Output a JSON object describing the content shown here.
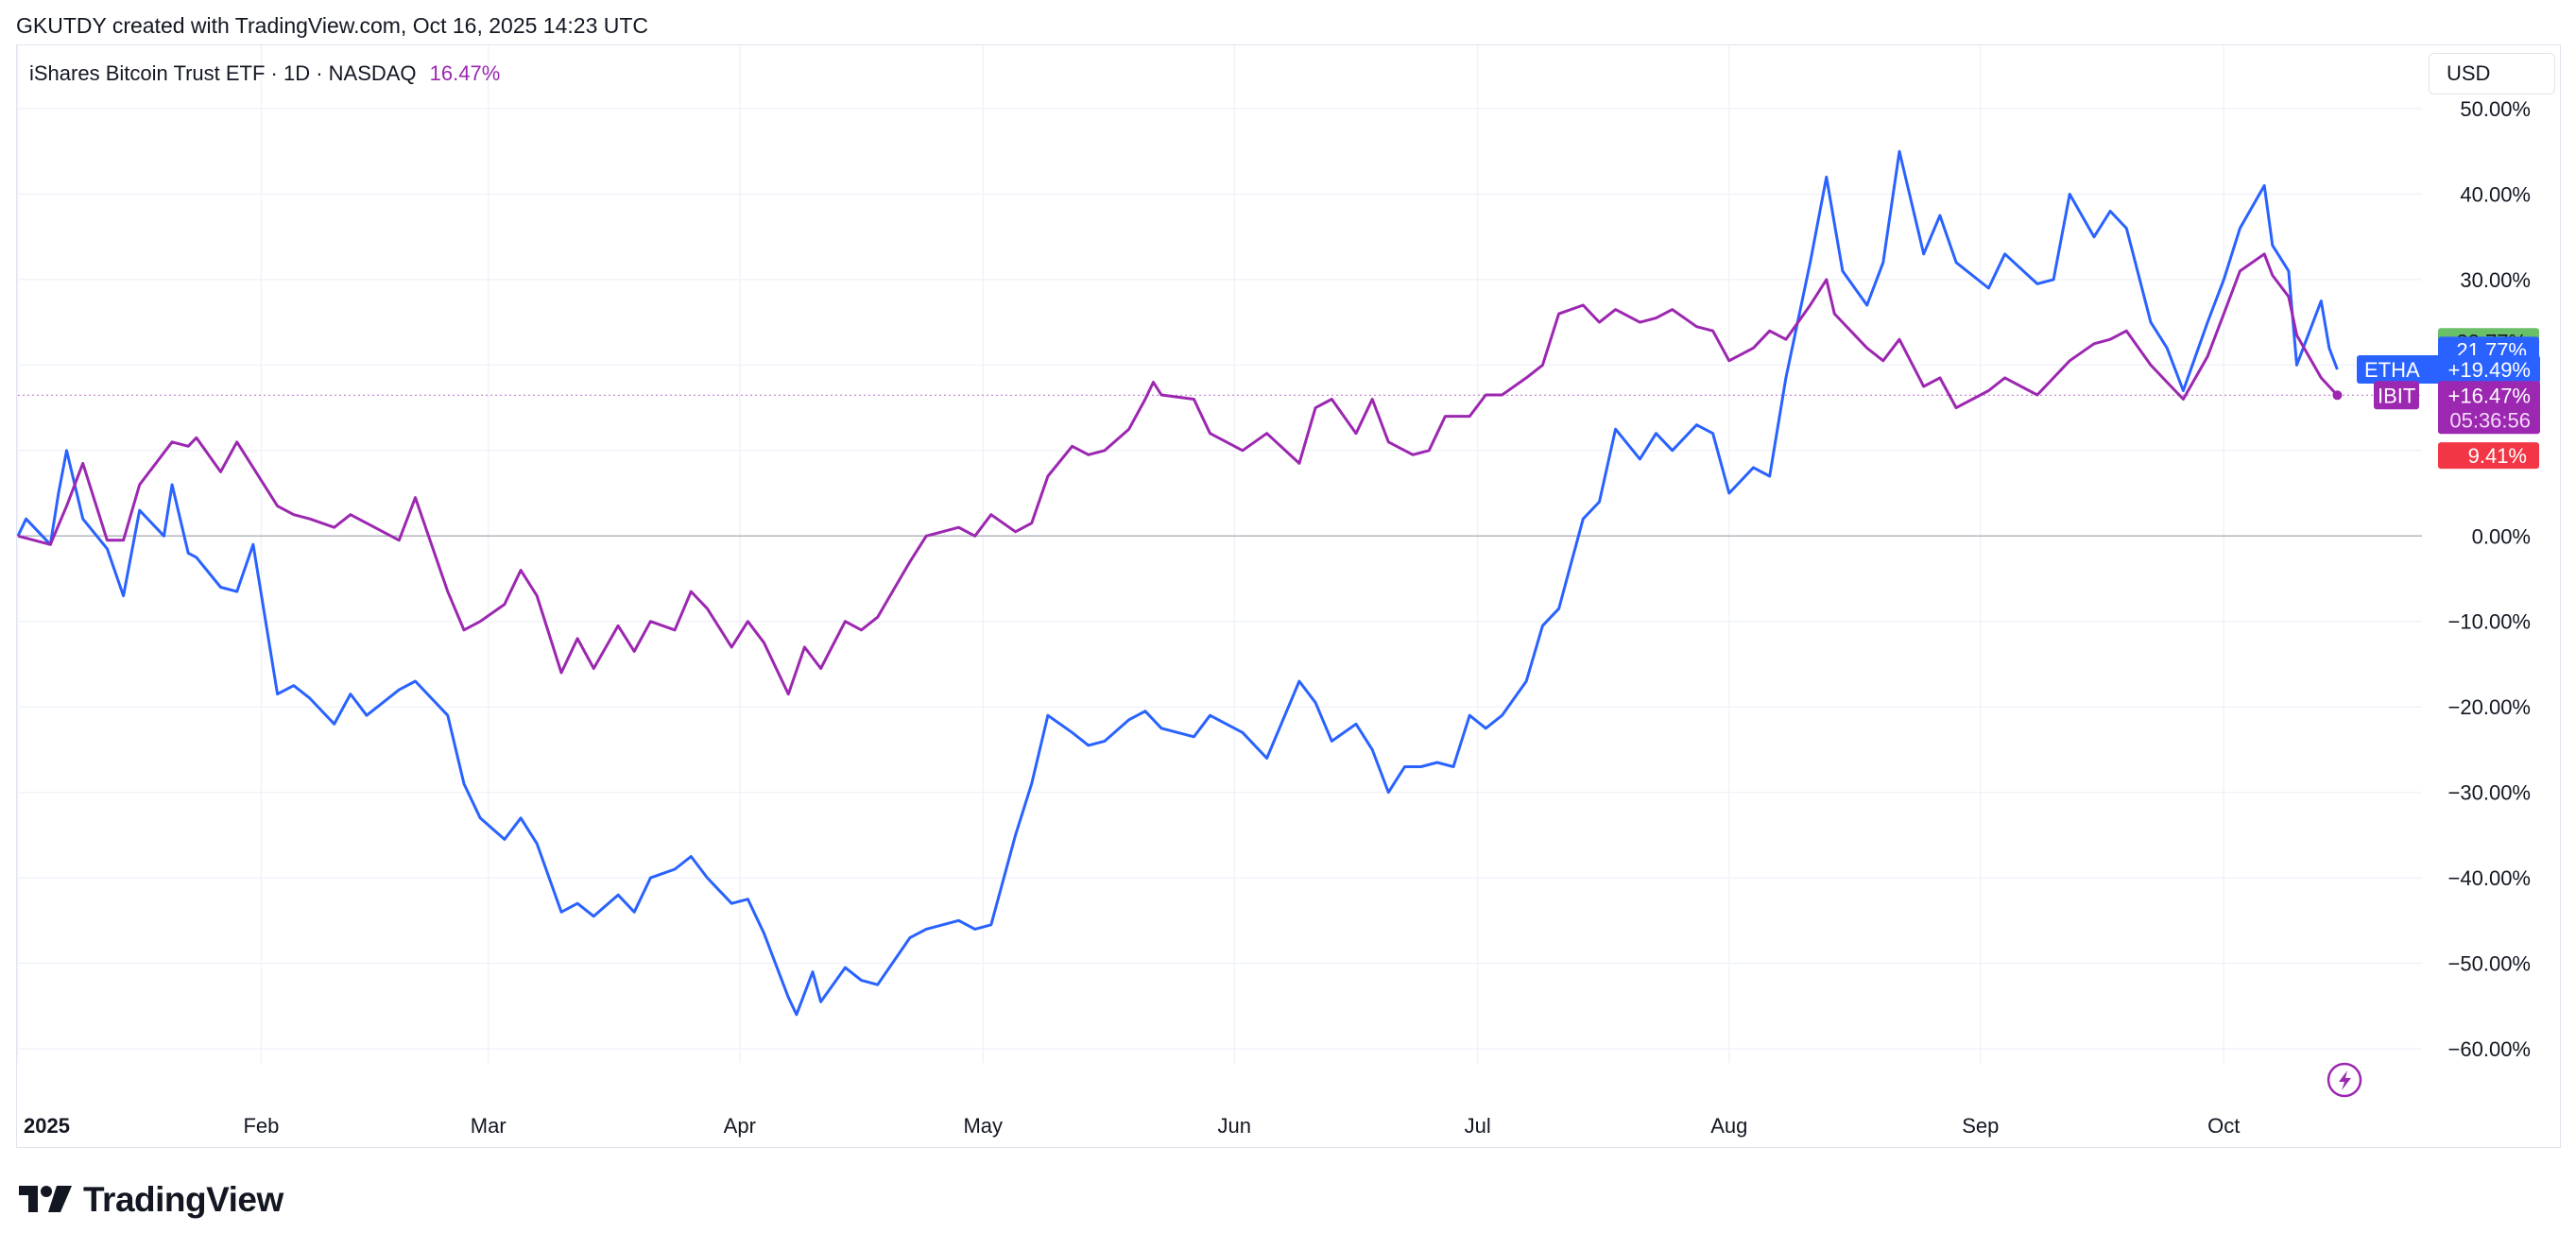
{
  "header": {
    "credit": "GKUTDY created with TradingView.com, Oct 16, 2025 14:23 UTC"
  },
  "legend": {
    "title": "iShares Bitcoin Trust ETF · 1D · NASDAQ",
    "change": "16.47%"
  },
  "toolbar": {
    "currency": "USD"
  },
  "footer": {
    "brand": "TradingView"
  },
  "colors": {
    "ibit": "#9c27b0",
    "etha": "#2962ff",
    "gain_badge": "#6abf69",
    "loss_badge": "#f23645"
  },
  "icons": {
    "brand_logo": "tradingview-logo-icon",
    "flash": "lightning-icon"
  },
  "chart_data": {
    "type": "line",
    "title": "iShares Bitcoin Trust ETF · 1D · NASDAQ",
    "xlabel": "",
    "ylabel": "",
    "y_unit": "percent change",
    "ylim": [
      -62,
      52
    ],
    "grid": true,
    "x_ticks": [
      {
        "label": "2025",
        "date": "2025-01-02"
      },
      {
        "label": "Feb",
        "date": "2025-02-01"
      },
      {
        "label": "Mar",
        "date": "2025-03-01"
      },
      {
        "label": "Apr",
        "date": "2025-04-01"
      },
      {
        "label": "May",
        "date": "2025-05-01"
      },
      {
        "label": "Jun",
        "date": "2025-06-01"
      },
      {
        "label": "Jul",
        "date": "2025-07-01"
      },
      {
        "label": "Aug",
        "date": "2025-08-01"
      },
      {
        "label": "Sep",
        "date": "2025-09-01"
      },
      {
        "label": "Oct",
        "date": "2025-10-01"
      }
    ],
    "y_ticks": [
      {
        "value": 50,
        "label": "50.00%"
      },
      {
        "value": 40,
        "label": "40.00%"
      },
      {
        "value": 30,
        "label": "30.00%"
      },
      {
        "value": 20,
        "label": "20.00%"
      },
      {
        "value": 10,
        "label": "10.00%"
      },
      {
        "value": 0,
        "label": "0.00%"
      },
      {
        "value": -10,
        "label": "−10.00%"
      },
      {
        "value": -20,
        "label": "−20.00%"
      },
      {
        "value": -30,
        "label": "−30.00%"
      },
      {
        "value": -40,
        "label": "−40.00%"
      },
      {
        "value": -50,
        "label": "−50.00%"
      },
      {
        "value": -60,
        "label": "−60.00%"
      }
    ],
    "series": [
      {
        "name": "IBIT",
        "color": "#9c27b0",
        "last_label": "+16.47%",
        "countdown": "05:36:56",
        "points": [
          [
            "2025-01-02",
            0.0
          ],
          [
            "2025-01-06",
            -1.0
          ],
          [
            "2025-01-08",
            3.5
          ],
          [
            "2025-01-10",
            8.5
          ],
          [
            "2025-01-13",
            -0.5
          ],
          [
            "2025-01-15",
            -0.5
          ],
          [
            "2025-01-17",
            6.0
          ],
          [
            "2025-01-21",
            11.0
          ],
          [
            "2025-01-23",
            10.5
          ],
          [
            "2025-01-24",
            11.5
          ],
          [
            "2025-01-27",
            7.5
          ],
          [
            "2025-01-29",
            11.0
          ],
          [
            "2025-01-31",
            8.0
          ],
          [
            "2025-02-03",
            3.5
          ],
          [
            "2025-02-05",
            2.5
          ],
          [
            "2025-02-07",
            2.0
          ],
          [
            "2025-02-10",
            1.0
          ],
          [
            "2025-02-12",
            2.5
          ],
          [
            "2025-02-14",
            1.5
          ],
          [
            "2025-02-18",
            -0.5
          ],
          [
            "2025-02-20",
            4.5
          ],
          [
            "2025-02-24",
            -6.5
          ],
          [
            "2025-02-26",
            -11.0
          ],
          [
            "2025-02-28",
            -10.0
          ],
          [
            "2025-03-03",
            -8.0
          ],
          [
            "2025-03-05",
            -4.0
          ],
          [
            "2025-03-07",
            -7.0
          ],
          [
            "2025-03-10",
            -16.0
          ],
          [
            "2025-03-12",
            -12.0
          ],
          [
            "2025-03-14",
            -15.5
          ],
          [
            "2025-03-17",
            -10.5
          ],
          [
            "2025-03-19",
            -13.5
          ],
          [
            "2025-03-21",
            -10.0
          ],
          [
            "2025-03-24",
            -11.0
          ],
          [
            "2025-03-26",
            -6.5
          ],
          [
            "2025-03-28",
            -8.5
          ],
          [
            "2025-03-31",
            -13.0
          ],
          [
            "2025-04-02",
            -10.0
          ],
          [
            "2025-04-04",
            -12.5
          ],
          [
            "2025-04-07",
            -18.5
          ],
          [
            "2025-04-09",
            -13.0
          ],
          [
            "2025-04-11",
            -15.5
          ],
          [
            "2025-04-14",
            -10.0
          ],
          [
            "2025-04-16",
            -11.0
          ],
          [
            "2025-04-18",
            -9.5
          ],
          [
            "2025-04-22",
            -3.0
          ],
          [
            "2025-04-24",
            0.0
          ],
          [
            "2025-04-28",
            1.0
          ],
          [
            "2025-04-30",
            0.0
          ],
          [
            "2025-05-02",
            2.5
          ],
          [
            "2025-05-05",
            0.5
          ],
          [
            "2025-05-07",
            1.5
          ],
          [
            "2025-05-09",
            7.0
          ],
          [
            "2025-05-12",
            10.5
          ],
          [
            "2025-05-14",
            9.5
          ],
          [
            "2025-05-16",
            10.0
          ],
          [
            "2025-05-19",
            12.5
          ],
          [
            "2025-05-21",
            16.0
          ],
          [
            "2025-05-22",
            18.0
          ],
          [
            "2025-05-23",
            16.5
          ],
          [
            "2025-05-27",
            16.0
          ],
          [
            "2025-05-29",
            12.0
          ],
          [
            "2025-06-02",
            10.0
          ],
          [
            "2025-06-05",
            12.0
          ],
          [
            "2025-06-09",
            8.5
          ],
          [
            "2025-06-11",
            15.0
          ],
          [
            "2025-06-13",
            16.0
          ],
          [
            "2025-06-16",
            12.0
          ],
          [
            "2025-06-18",
            16.0
          ],
          [
            "2025-06-20",
            11.0
          ],
          [
            "2025-06-23",
            9.5
          ],
          [
            "2025-06-25",
            10.0
          ],
          [
            "2025-06-27",
            14.0
          ],
          [
            "2025-06-30",
            14.0
          ],
          [
            "2025-07-02",
            16.5
          ],
          [
            "2025-07-04",
            16.5
          ],
          [
            "2025-07-07",
            18.5
          ],
          [
            "2025-07-09",
            20.0
          ],
          [
            "2025-07-11",
            26.0
          ],
          [
            "2025-07-14",
            27.0
          ],
          [
            "2025-07-16",
            25.0
          ],
          [
            "2025-07-18",
            26.5
          ],
          [
            "2025-07-21",
            25.0
          ],
          [
            "2025-07-23",
            25.5
          ],
          [
            "2025-07-25",
            26.5
          ],
          [
            "2025-07-28",
            24.5
          ],
          [
            "2025-07-30",
            24.0
          ],
          [
            "2025-08-01",
            20.5
          ],
          [
            "2025-08-04",
            22.0
          ],
          [
            "2025-08-06",
            24.0
          ],
          [
            "2025-08-08",
            23.0
          ],
          [
            "2025-08-11",
            27.0
          ],
          [
            "2025-08-13",
            30.0
          ],
          [
            "2025-08-14",
            26.0
          ],
          [
            "2025-08-18",
            22.0
          ],
          [
            "2025-08-20",
            20.5
          ],
          [
            "2025-08-22",
            23.0
          ],
          [
            "2025-08-25",
            17.5
          ],
          [
            "2025-08-27",
            18.5
          ],
          [
            "2025-08-29",
            15.0
          ],
          [
            "2025-09-02",
            17.0
          ],
          [
            "2025-09-04",
            18.5
          ],
          [
            "2025-09-08",
            16.5
          ],
          [
            "2025-09-10",
            18.5
          ],
          [
            "2025-09-12",
            20.5
          ],
          [
            "2025-09-15",
            22.5
          ],
          [
            "2025-09-17",
            23.0
          ],
          [
            "2025-09-19",
            24.0
          ],
          [
            "2025-09-22",
            20.0
          ],
          [
            "2025-09-24",
            18.0
          ],
          [
            "2025-09-26",
            16.0
          ],
          [
            "2025-09-29",
            21.0
          ],
          [
            "2025-10-01",
            26.0
          ],
          [
            "2025-10-03",
            31.0
          ],
          [
            "2025-10-06",
            33.0
          ],
          [
            "2025-10-07",
            30.5
          ],
          [
            "2025-10-09",
            28.0
          ],
          [
            "2025-10-10",
            23.5
          ],
          [
            "2025-10-13",
            18.5
          ],
          [
            "2025-10-15",
            16.47
          ]
        ]
      },
      {
        "name": "ETHA",
        "color": "#2962ff",
        "last_label": "+19.49%",
        "points": [
          [
            "2025-01-02",
            0.0
          ],
          [
            "2025-01-03",
            2.0
          ],
          [
            "2025-01-06",
            -1.0
          ],
          [
            "2025-01-07",
            5.0
          ],
          [
            "2025-01-08",
            10.0
          ],
          [
            "2025-01-10",
            2.0
          ],
          [
            "2025-01-13",
            -1.5
          ],
          [
            "2025-01-15",
            -7.0
          ],
          [
            "2025-01-17",
            3.0
          ],
          [
            "2025-01-20",
            0.0
          ],
          [
            "2025-01-21",
            6.0
          ],
          [
            "2025-01-23",
            -2.0
          ],
          [
            "2025-01-24",
            -2.5
          ],
          [
            "2025-01-27",
            -6.0
          ],
          [
            "2025-01-29",
            -6.5
          ],
          [
            "2025-01-31",
            -1.0
          ],
          [
            "2025-02-03",
            -18.5
          ],
          [
            "2025-02-05",
            -17.5
          ],
          [
            "2025-02-07",
            -19.0
          ],
          [
            "2025-02-10",
            -22.0
          ],
          [
            "2025-02-12",
            -18.5
          ],
          [
            "2025-02-14",
            -21.0
          ],
          [
            "2025-02-18",
            -18.0
          ],
          [
            "2025-02-20",
            -17.0
          ],
          [
            "2025-02-24",
            -21.0
          ],
          [
            "2025-02-26",
            -29.0
          ],
          [
            "2025-02-28",
            -33.0
          ],
          [
            "2025-03-03",
            -35.5
          ],
          [
            "2025-03-05",
            -33.0
          ],
          [
            "2025-03-07",
            -36.0
          ],
          [
            "2025-03-10",
            -44.0
          ],
          [
            "2025-03-12",
            -43.0
          ],
          [
            "2025-03-14",
            -44.5
          ],
          [
            "2025-03-17",
            -42.0
          ],
          [
            "2025-03-19",
            -44.0
          ],
          [
            "2025-03-21",
            -40.0
          ],
          [
            "2025-03-24",
            -39.0
          ],
          [
            "2025-03-26",
            -37.5
          ],
          [
            "2025-03-28",
            -40.0
          ],
          [
            "2025-03-31",
            -43.0
          ],
          [
            "2025-04-02",
            -42.5
          ],
          [
            "2025-04-04",
            -46.5
          ],
          [
            "2025-04-07",
            -54.0
          ],
          [
            "2025-04-08",
            -56.0
          ],
          [
            "2025-04-10",
            -51.0
          ],
          [
            "2025-04-11",
            -54.5
          ],
          [
            "2025-04-14",
            -50.5
          ],
          [
            "2025-04-16",
            -52.0
          ],
          [
            "2025-04-18",
            -52.5
          ],
          [
            "2025-04-22",
            -47.0
          ],
          [
            "2025-04-24",
            -46.0
          ],
          [
            "2025-04-28",
            -45.0
          ],
          [
            "2025-04-30",
            -46.0
          ],
          [
            "2025-05-02",
            -45.5
          ],
          [
            "2025-05-05",
            -35.0
          ],
          [
            "2025-05-07",
            -29.0
          ],
          [
            "2025-05-09",
            -21.0
          ],
          [
            "2025-05-12",
            -23.0
          ],
          [
            "2025-05-14",
            -24.5
          ],
          [
            "2025-05-16",
            -24.0
          ],
          [
            "2025-05-19",
            -21.5
          ],
          [
            "2025-05-21",
            -20.5
          ],
          [
            "2025-05-23",
            -22.5
          ],
          [
            "2025-05-27",
            -23.5
          ],
          [
            "2025-05-29",
            -21.0
          ],
          [
            "2025-06-02",
            -23.0
          ],
          [
            "2025-06-05",
            -26.0
          ],
          [
            "2025-06-09",
            -17.0
          ],
          [
            "2025-06-11",
            -19.5
          ],
          [
            "2025-06-13",
            -24.0
          ],
          [
            "2025-06-16",
            -22.0
          ],
          [
            "2025-06-18",
            -25.0
          ],
          [
            "2025-06-20",
            -30.0
          ],
          [
            "2025-06-22",
            -27.0
          ],
          [
            "2025-06-24",
            -27.0
          ],
          [
            "2025-06-26",
            -26.5
          ],
          [
            "2025-06-28",
            -27.0
          ],
          [
            "2025-06-30",
            -21.0
          ],
          [
            "2025-07-02",
            -22.5
          ],
          [
            "2025-07-04",
            -21.0
          ],
          [
            "2025-07-07",
            -17.0
          ],
          [
            "2025-07-09",
            -10.5
          ],
          [
            "2025-07-11",
            -8.5
          ],
          [
            "2025-07-14",
            2.0
          ],
          [
            "2025-07-16",
            4.0
          ],
          [
            "2025-07-18",
            12.5
          ],
          [
            "2025-07-21",
            9.0
          ],
          [
            "2025-07-23",
            12.0
          ],
          [
            "2025-07-25",
            10.0
          ],
          [
            "2025-07-28",
            13.0
          ],
          [
            "2025-07-30",
            12.0
          ],
          [
            "2025-08-01",
            5.0
          ],
          [
            "2025-08-04",
            8.0
          ],
          [
            "2025-08-06",
            7.0
          ],
          [
            "2025-08-08",
            18.5
          ],
          [
            "2025-08-11",
            32.0
          ],
          [
            "2025-08-13",
            42.0
          ],
          [
            "2025-08-15",
            31.0
          ],
          [
            "2025-08-18",
            27.0
          ],
          [
            "2025-08-20",
            32.0
          ],
          [
            "2025-08-22",
            45.0
          ],
          [
            "2025-08-25",
            33.0
          ],
          [
            "2025-08-27",
            37.5
          ],
          [
            "2025-08-29",
            32.0
          ],
          [
            "2025-09-02",
            29.0
          ],
          [
            "2025-09-04",
            33.0
          ],
          [
            "2025-09-08",
            29.5
          ],
          [
            "2025-09-10",
            30.0
          ],
          [
            "2025-09-12",
            40.0
          ],
          [
            "2025-09-15",
            35.0
          ],
          [
            "2025-09-17",
            38.0
          ],
          [
            "2025-09-19",
            36.0
          ],
          [
            "2025-09-22",
            25.0
          ],
          [
            "2025-09-24",
            22.0
          ],
          [
            "2025-09-26",
            17.0
          ],
          [
            "2025-09-29",
            25.0
          ],
          [
            "2025-10-01",
            30.0
          ],
          [
            "2025-10-03",
            36.0
          ],
          [
            "2025-10-06",
            41.0
          ],
          [
            "2025-10-07",
            34.0
          ],
          [
            "2025-10-09",
            31.0
          ],
          [
            "2025-10-10",
            20.0
          ],
          [
            "2025-10-13",
            27.5
          ],
          [
            "2025-10-14",
            22.0
          ],
          [
            "2025-10-15",
            19.49
          ]
        ]
      }
    ],
    "price_badges": [
      {
        "label": "22.77%",
        "value": 22.77,
        "color": "#6abf69",
        "text_color": "#131722"
      },
      {
        "label": "21.77%",
        "value": 21.77,
        "color": "#2962ff",
        "text_color": "#ffffff"
      },
      {
        "label": "9.41%",
        "value": 9.41,
        "color": "#f23645",
        "text_color": "#ffffff"
      }
    ],
    "zero_line": 0,
    "last_value_guide": 16.47
  }
}
